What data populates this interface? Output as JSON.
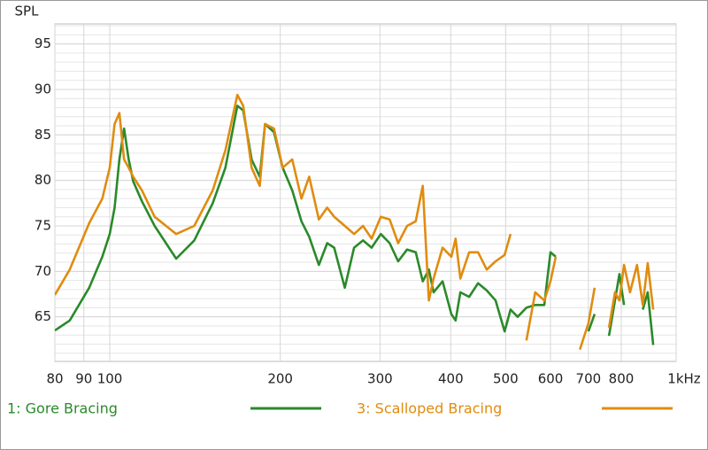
{
  "chart_data": {
    "type": "line",
    "y_label": "SPL",
    "log_x": true,
    "grid": true,
    "xlim": [
      80,
      1000
    ],
    "ylim": [
      60.1,
      97.2
    ],
    "xticks": [
      80,
      90,
      100,
      200,
      300,
      400,
      500,
      600,
      700,
      800,
      {
        "value": 1000,
        "label": "1kHz"
      }
    ],
    "yticks": [
      65,
      70,
      75,
      80,
      85,
      90,
      95
    ],
    "x": [
      80,
      85,
      92,
      97,
      100,
      102,
      104,
      106,
      108,
      110,
      114,
      120,
      131,
      141,
      152,
      160,
      168,
      172,
      178,
      184,
      188,
      195,
      202,
      210,
      218,
      225,
      234,
      242,
      249,
      260,
      270,
      280,
      290,
      301,
      312,
      323,
      335,
      347,
      357,
      366,
      373,
      387,
      401,
      408,
      416,
      431,
      447,
      463,
      480,
      498,
      510,
      525,
      544,
      564,
      585,
      600,
      613,
      628,
      652,
      676,
      700,
      718,
      739,
      761,
      780,
      794,
      809,
      829,
      853,
      873,
      891,
      911,
      934
    ],
    "series": [
      {
        "name": "1: Gore Bracing",
        "color": "#2a8a2a",
        "values": [
          63.5,
          64.6,
          68.2,
          71.6,
          74.1,
          77.0,
          82.3,
          85.7,
          82.3,
          79.9,
          77.7,
          75.0,
          71.4,
          73.4,
          77.5,
          81.4,
          88.2,
          87.7,
          82.3,
          80.4,
          86.2,
          85.3,
          81.4,
          78.9,
          75.5,
          73.8,
          70.7,
          73.1,
          72.6,
          68.2,
          72.6,
          73.4,
          72.6,
          74.1,
          73.1,
          71.1,
          72.4,
          72.1,
          68.9,
          70.2,
          67.7,
          68.9,
          65.3,
          64.6,
          67.7,
          67.2,
          68.7,
          67.9,
          66.8,
          63.4,
          65.8,
          65.0,
          66.0,
          66.3,
          66.3,
          72.1,
          71.6,
          null,
          null,
          null,
          63.4,
          65.3,
          null,
          62.9,
          66.8,
          69.7,
          66.3,
          null,
          null,
          65.8,
          67.7,
          61.9,
          null
        ]
      },
      {
        "name": "3: Scalloped Bracing",
        "color": "#e08c10",
        "values": [
          67.4,
          70.2,
          75.3,
          78.0,
          81.4,
          86.2,
          87.4,
          82.3,
          81.4,
          80.4,
          78.9,
          76.0,
          74.1,
          75.0,
          78.9,
          83.3,
          89.4,
          88.2,
          81.4,
          79.4,
          86.2,
          85.7,
          81.4,
          82.3,
          78.0,
          80.4,
          75.7,
          77.0,
          76.0,
          75.0,
          74.1,
          75.0,
          73.6,
          76.0,
          75.7,
          73.1,
          75.0,
          75.5,
          79.4,
          66.8,
          69.2,
          72.6,
          71.6,
          73.6,
          69.2,
          72.1,
          72.1,
          70.2,
          71.1,
          71.8,
          74.1,
          null,
          62.4,
          67.7,
          66.8,
          68.9,
          71.6,
          null,
          null,
          61.4,
          64.3,
          68.2,
          null,
          63.8,
          67.7,
          66.8,
          70.7,
          67.7,
          70.7,
          66.3,
          70.9,
          65.8,
          null
        ]
      }
    ]
  }
}
